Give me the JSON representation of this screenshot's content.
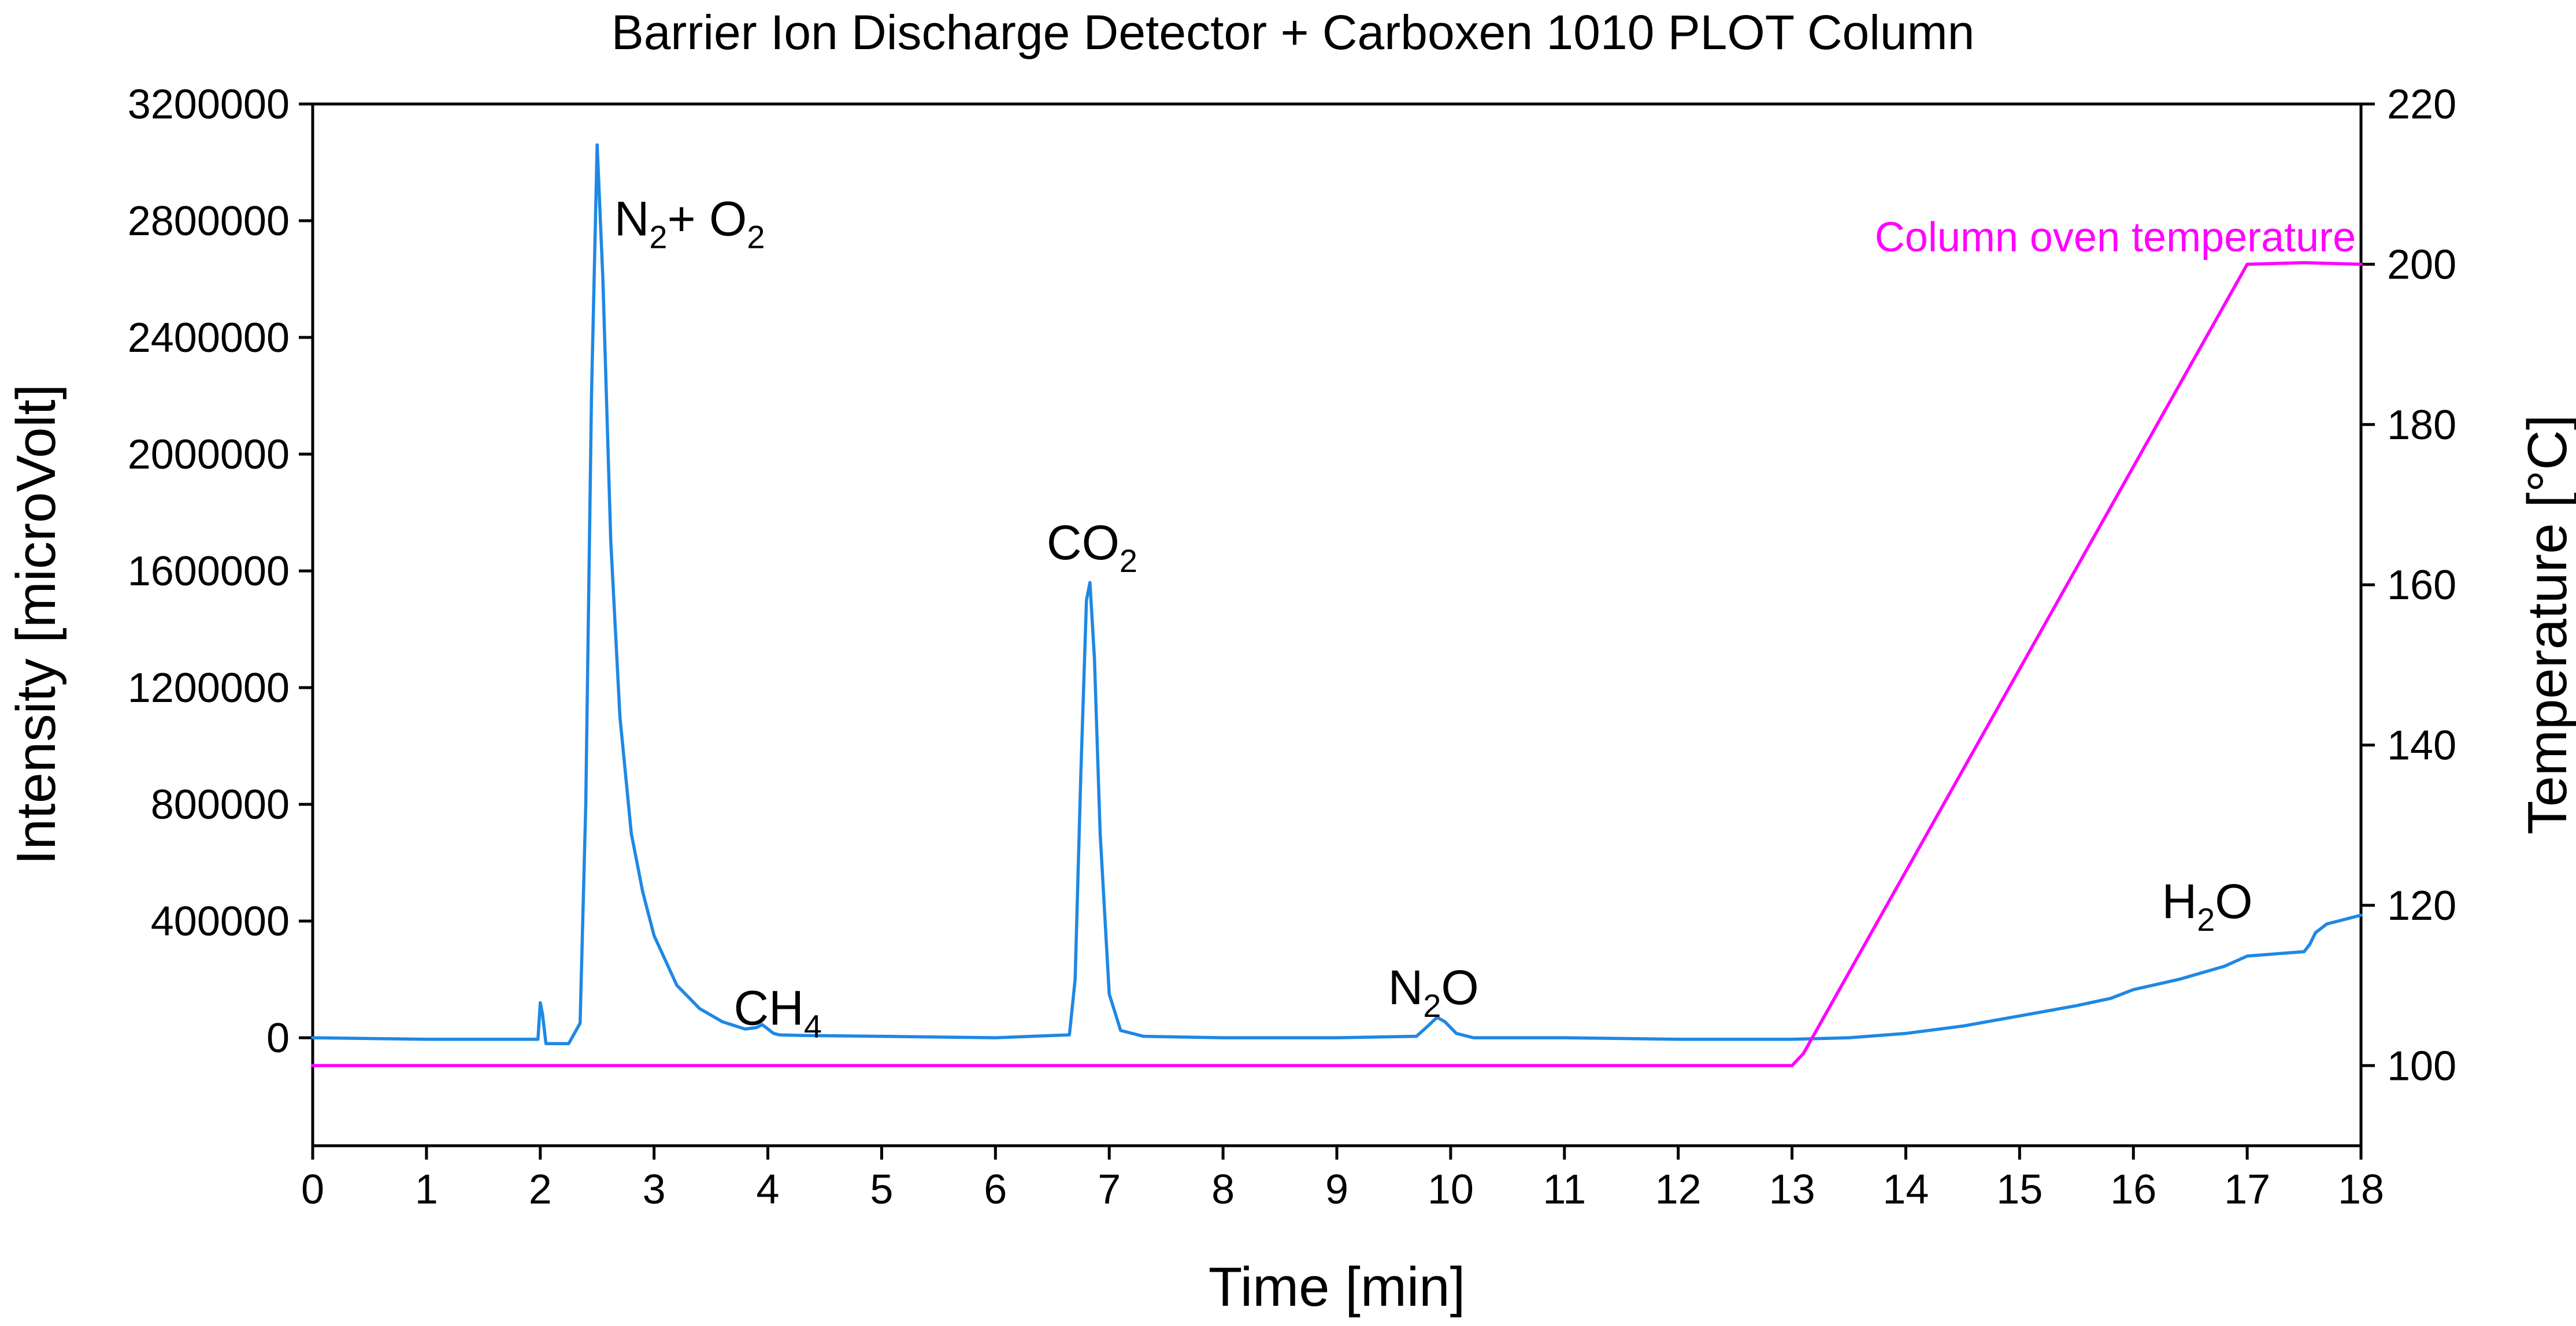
{
  "chart_data": {
    "type": "line",
    "title": "Barrier Ion Discharge Detector + Carboxen 1010 PLOT Column",
    "xlabel": "Time [min]",
    "ylabel": "Intensity [microVolt]",
    "ylabel_right": "Temperature  [°C]",
    "xlim": [
      0,
      18
    ],
    "ylim": [
      -370000,
      3200000
    ],
    "ylim_right": [
      90,
      220
    ],
    "xticks": [
      0,
      1,
      2,
      3,
      4,
      5,
      6,
      7,
      8,
      9,
      10,
      11,
      12,
      13,
      14,
      15,
      16,
      17,
      18
    ],
    "yticks": [
      0,
      400000,
      800000,
      1200000,
      1600000,
      2000000,
      2400000,
      2800000,
      3200000
    ],
    "yticks_right": [
      100,
      120,
      140,
      160,
      180,
      200,
      220
    ],
    "grid": false,
    "colors": {
      "intensity": "#1e88e5",
      "temperature": "#ff00ff",
      "axes": "#000000"
    },
    "series": [
      {
        "name": "",
        "axis": "left",
        "x": [
          0,
          1,
          1.98,
          2.0,
          2.02,
          2.05,
          2.25,
          2.35,
          2.4,
          2.45,
          2.5,
          2.55,
          2.62,
          2.7,
          2.8,
          2.9,
          3.0,
          3.2,
          3.4,
          3.6,
          3.8,
          3.9,
          3.95,
          4.0,
          4.05,
          4.1,
          4.3,
          5.0,
          6.0,
          6.65,
          6.7,
          6.75,
          6.8,
          6.83,
          6.87,
          6.92,
          7.0,
          7.1,
          7.3,
          8.0,
          9.0,
          9.7,
          9.8,
          9.88,
          9.95,
          10.05,
          10.2,
          11.0,
          12.0,
          13.0,
          13.5,
          14.0,
          14.5,
          15.0,
          15.5,
          15.8,
          16.0,
          16.4,
          16.8,
          17.0,
          17.5,
          17.55,
          17.6,
          17.7,
          17.8,
          18.0
        ],
        "y": [
          0,
          -5000,
          -5000,
          120000,
          80000,
          -20000,
          -20000,
          50000,
          800000,
          2200000,
          3060000,
          2600000,
          1700000,
          1100000,
          700000,
          500000,
          350000,
          180000,
          100000,
          55000,
          30000,
          35000,
          45000,
          30000,
          15000,
          10000,
          8000,
          5000,
          0,
          10000,
          200000,
          900000,
          1500000,
          1560000,
          1300000,
          700000,
          150000,
          25000,
          5000,
          0,
          0,
          5000,
          40000,
          70000,
          55000,
          15000,
          0,
          0,
          -5000,
          -5000,
          0,
          15000,
          40000,
          75000,
          110000,
          135000,
          165000,
          200000,
          245000,
          280000,
          295000,
          320000,
          360000,
          390000,
          400000,
          420000
        ]
      },
      {
        "name": "Column oven temperature",
        "axis": "right",
        "x": [
          0,
          13.0,
          13.1,
          17.0,
          17.5,
          18.0
        ],
        "y": [
          100,
          100,
          101.5,
          200,
          200.2,
          200
        ]
      }
    ],
    "annotations": [
      {
        "x": 2.65,
        "y": 2750000,
        "parts": [
          "N",
          "2",
          "+ O",
          "2"
        ]
      },
      {
        "x": 3.7,
        "y": 45000,
        "parts": [
          "CH",
          "4"
        ]
      },
      {
        "x": 6.45,
        "y": 1640000,
        "parts": [
          "CO",
          "2"
        ]
      },
      {
        "x": 9.45,
        "y": 115000,
        "parts": [
          "N",
          "2",
          "O"
        ]
      },
      {
        "x": 16.25,
        "y": 410000,
        "parts": [
          "H",
          "2",
          "O"
        ]
      }
    ]
  }
}
